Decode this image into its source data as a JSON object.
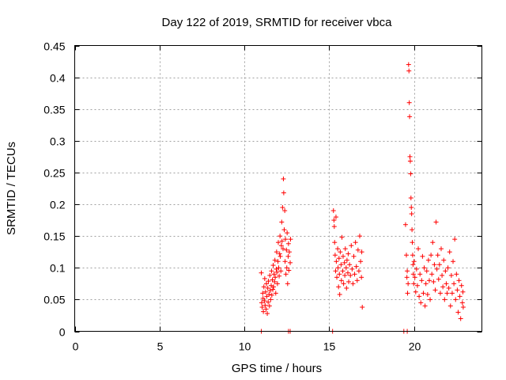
{
  "chart_data": {
    "type": "scatter",
    "title": "Day 122 of 2019, SRMTID for receiver vbca",
    "xlabel": "GPS time / hours",
    "ylabel": "SRMTID / TECUs",
    "xlim": [
      0,
      24
    ],
    "ylim": [
      0,
      0.45
    ],
    "xticks": [
      0,
      5,
      10,
      15,
      20
    ],
    "yticks": [
      0,
      0.05,
      0.1,
      0.15,
      0.2,
      0.25,
      0.3,
      0.35,
      0.4,
      0.45
    ],
    "grid": true,
    "marker": "+",
    "color": "#ff0000",
    "series": [
      {
        "name": "SRMTID",
        "points": [
          [
            11.0,
            0.092
          ],
          [
            11.02,
            0.045
          ],
          [
            11.05,
            0.038
          ],
          [
            11.08,
            0.06
          ],
          [
            11.1,
            0.052
          ],
          [
            11.12,
            0.031
          ],
          [
            11.15,
            0.07
          ],
          [
            11.18,
            0.048
          ],
          [
            11.2,
            0.083
          ],
          [
            11.22,
            0.041
          ],
          [
            11.25,
            0.062
          ],
          [
            11.28,
            0.035
          ],
          [
            11.3,
            0.075
          ],
          [
            11.32,
            0.055
          ],
          [
            11.35,
            0.028
          ],
          [
            11.38,
            0.068
          ],
          [
            11.4,
            0.046
          ],
          [
            11.42,
            0.079
          ],
          [
            11.45,
            0.058
          ],
          [
            11.48,
            0.04
          ],
          [
            11.5,
            0.088
          ],
          [
            11.52,
            0.064
          ],
          [
            11.55,
            0.05
          ],
          [
            11.58,
            0.072
          ],
          [
            11.6,
            0.095
          ],
          [
            11.62,
            0.057
          ],
          [
            11.65,
            0.081
          ],
          [
            11.68,
            0.066
          ],
          [
            11.7,
            0.104
          ],
          [
            11.72,
            0.07
          ],
          [
            11.75,
            0.09
          ],
          [
            11.78,
            0.078
          ],
          [
            11.8,
            0.112
          ],
          [
            11.82,
            0.085
          ],
          [
            11.85,
            0.06
          ],
          [
            11.88,
            0.098
          ],
          [
            11.9,
            0.125
          ],
          [
            11.92,
            0.093
          ],
          [
            11.95,
            0.075
          ],
          [
            11.98,
            0.11
          ],
          [
            12.0,
            0.14
          ],
          [
            12.02,
            0.1
          ],
          [
            12.05,
            0.087
          ],
          [
            12.08,
            0.122
          ],
          [
            12.1,
            0.15
          ],
          [
            12.12,
            0.118
          ],
          [
            12.15,
            0.095
          ],
          [
            12.18,
            0.135
          ],
          [
            12.2,
            0.172
          ],
          [
            12.22,
            0.142
          ],
          [
            12.25,
            0.195
          ],
          [
            12.28,
            0.13
          ],
          [
            12.3,
            0.24
          ],
          [
            12.32,
            0.218
          ],
          [
            12.35,
            0.16
          ],
          [
            12.38,
            0.19
          ],
          [
            12.4,
            0.11
          ],
          [
            12.42,
            0.145
          ],
          [
            12.45,
            0.09
          ],
          [
            12.48,
            0.128
          ],
          [
            12.5,
            0.1
          ],
          [
            12.52,
            0.155
          ],
          [
            12.55,
            0.075
          ],
          [
            12.58,
            0.118
          ],
          [
            12.6,
            0.138
          ],
          [
            12.62,
            0.096
          ],
          [
            12.65,
            0.125
          ],
          [
            12.7,
            0.108
          ],
          [
            12.72,
            0.145
          ],
          [
            11.0,
            0.0
          ],
          [
            12.6,
            0.0
          ],
          [
            12.7,
            0.0
          ],
          [
            15.2,
            0.0
          ],
          [
            15.25,
            0.19
          ],
          [
            15.28,
            0.175
          ],
          [
            15.3,
            0.165
          ],
          [
            15.32,
            0.14
          ],
          [
            15.35,
            0.12
          ],
          [
            15.38,
            0.095
          ],
          [
            15.4,
            0.18
          ],
          [
            15.42,
            0.11
          ],
          [
            15.45,
            0.085
          ],
          [
            15.5,
            0.13
          ],
          [
            15.52,
            0.1
          ],
          [
            15.55,
            0.07
          ],
          [
            15.58,
            0.115
          ],
          [
            15.6,
            0.09
          ],
          [
            15.62,
            0.058
          ],
          [
            15.65,
            0.125
          ],
          [
            15.7,
            0.105
          ],
          [
            15.72,
            0.08
          ],
          [
            15.75,
            0.148
          ],
          [
            15.8,
            0.095
          ],
          [
            15.82,
            0.118
          ],
          [
            15.85,
            0.075
          ],
          [
            15.9,
            0.108
          ],
          [
            15.92,
            0.088
          ],
          [
            15.95,
            0.13
          ],
          [
            16.0,
            0.1
          ],
          [
            16.02,
            0.068
          ],
          [
            16.05,
            0.112
          ],
          [
            16.1,
            0.092
          ],
          [
            16.12,
            0.122
          ],
          [
            16.15,
            0.078
          ],
          [
            16.2,
            0.105
          ],
          [
            16.25,
            0.088
          ],
          [
            16.3,
            0.135
          ],
          [
            16.35,
            0.098
          ],
          [
            16.4,
            0.075
          ],
          [
            16.45,
            0.118
          ],
          [
            16.5,
            0.09
          ],
          [
            16.55,
            0.14
          ],
          [
            16.6,
            0.102
          ],
          [
            16.65,
            0.08
          ],
          [
            16.7,
            0.128
          ],
          [
            16.75,
            0.095
          ],
          [
            16.8,
            0.15
          ],
          [
            16.85,
            0.11
          ],
          [
            16.9,
            0.085
          ],
          [
            16.95,
            0.038
          ],
          [
            16.92,
            0.125
          ],
          [
            19.4,
            0.0
          ],
          [
            19.6,
            0.0
          ],
          [
            19.5,
            0.168
          ],
          [
            19.55,
            0.12
          ],
          [
            19.58,
            0.085
          ],
          [
            19.6,
            0.095
          ],
          [
            19.62,
            0.06
          ],
          [
            19.65,
            0.075
          ],
          [
            19.68,
            0.42
          ],
          [
            19.7,
            0.41
          ],
          [
            19.72,
            0.36
          ],
          [
            19.74,
            0.338
          ],
          [
            19.76,
            0.275
          ],
          [
            19.78,
            0.268
          ],
          [
            19.8,
            0.248
          ],
          [
            19.82,
            0.21
          ],
          [
            19.84,
            0.195
          ],
          [
            19.86,
            0.185
          ],
          [
            19.88,
            0.16
          ],
          [
            19.9,
            0.14
          ],
          [
            19.92,
            0.12
          ],
          [
            19.94,
            0.105
          ],
          [
            19.96,
            0.09
          ],
          [
            19.98,
            0.075
          ],
          [
            20.0,
            0.11
          ],
          [
            20.05,
            0.085
          ],
          [
            20.1,
            0.062
          ],
          [
            20.15,
            0.098
          ],
          [
            20.2,
            0.072
          ],
          [
            20.25,
            0.13
          ],
          [
            20.3,
            0.055
          ],
          [
            20.35,
            0.09
          ],
          [
            20.4,
            0.045
          ],
          [
            20.45,
            0.08
          ],
          [
            20.5,
            0.118
          ],
          [
            20.55,
            0.06
          ],
          [
            20.6,
            0.1
          ],
          [
            20.65,
            0.04
          ],
          [
            20.7,
            0.075
          ],
          [
            20.75,
            0.095
          ],
          [
            20.8,
            0.058
          ],
          [
            20.85,
            0.112
          ],
          [
            20.9,
            0.08
          ],
          [
            20.95,
            0.05
          ],
          [
            21.0,
            0.12
          ],
          [
            21.05,
            0.09
          ],
          [
            21.1,
            0.14
          ],
          [
            21.15,
            0.078
          ],
          [
            21.2,
            0.105
          ],
          [
            21.25,
            0.065
          ],
          [
            21.3,
            0.172
          ],
          [
            21.35,
            0.098
          ],
          [
            21.4,
            0.12
          ],
          [
            21.45,
            0.082
          ],
          [
            21.5,
            0.105
          ],
          [
            21.55,
            0.06
          ],
          [
            21.6,
            0.13
          ],
          [
            21.65,
            0.088
          ],
          [
            21.7,
            0.07
          ],
          [
            21.75,
            0.112
          ],
          [
            21.8,
            0.05
          ],
          [
            21.85,
            0.095
          ],
          [
            21.9,
            0.075
          ],
          [
            21.95,
            0.06
          ],
          [
            22.0,
            0.1
          ],
          [
            22.05,
            0.068
          ],
          [
            22.1,
            0.125
          ],
          [
            22.15,
            0.04
          ],
          [
            22.2,
            0.088
          ],
          [
            22.25,
            0.06
          ],
          [
            22.3,
            0.11
          ],
          [
            22.35,
            0.075
          ],
          [
            22.4,
            0.145
          ],
          [
            22.45,
            0.05
          ],
          [
            22.5,
            0.09
          ],
          [
            22.55,
            0.065
          ],
          [
            22.6,
            0.03
          ],
          [
            22.65,
            0.08
          ],
          [
            22.7,
            0.055
          ],
          [
            22.75,
            0.02
          ],
          [
            22.8,
            0.072
          ],
          [
            22.85,
            0.045
          ],
          [
            22.88,
            0.062
          ],
          [
            22.9,
            0.038
          ]
        ]
      }
    ]
  }
}
